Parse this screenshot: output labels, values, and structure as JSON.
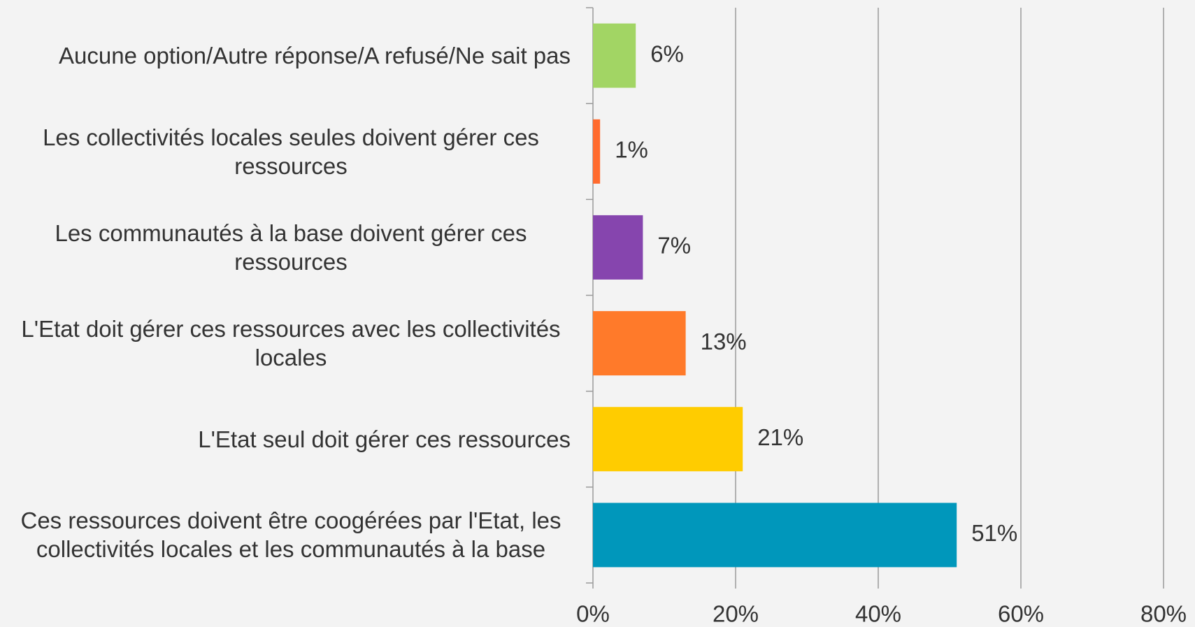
{
  "chart_data": {
    "type": "bar",
    "orientation": "horizontal",
    "categories": [
      "Aucune option/Autre réponse/A refusé/Ne sait pas",
      "Les collectivités locales seules doivent gérer ces ressources",
      "Les communautés à la base doivent gérer ces ressources",
      "L'Etat doit gérer ces ressources avec les collectivités locales",
      "L'Etat seul doit gérer ces ressources",
      "Ces ressources doivent être coogérées par l'Etat, les collectivités locales et les communautés à la base"
    ],
    "values": [
      6,
      1,
      7,
      13,
      21,
      51
    ],
    "value_labels": [
      "6%",
      "1%",
      "7%",
      "13%",
      "21%",
      "51%"
    ],
    "colors": [
      "#a2d564",
      "#ff6b2e",
      "#8645ae",
      "#ff7a2a",
      "#ffcc00",
      "#0097bb"
    ],
    "xlim": [
      0,
      80
    ],
    "xticks": [
      {
        "value": 0,
        "label": "0%"
      },
      {
        "value": 20,
        "label": "20%"
      },
      {
        "value": 40,
        "label": "40%"
      },
      {
        "value": 60,
        "label": "60%"
      },
      {
        "value": 80,
        "label": "80%"
      }
    ],
    "grid": true
  }
}
